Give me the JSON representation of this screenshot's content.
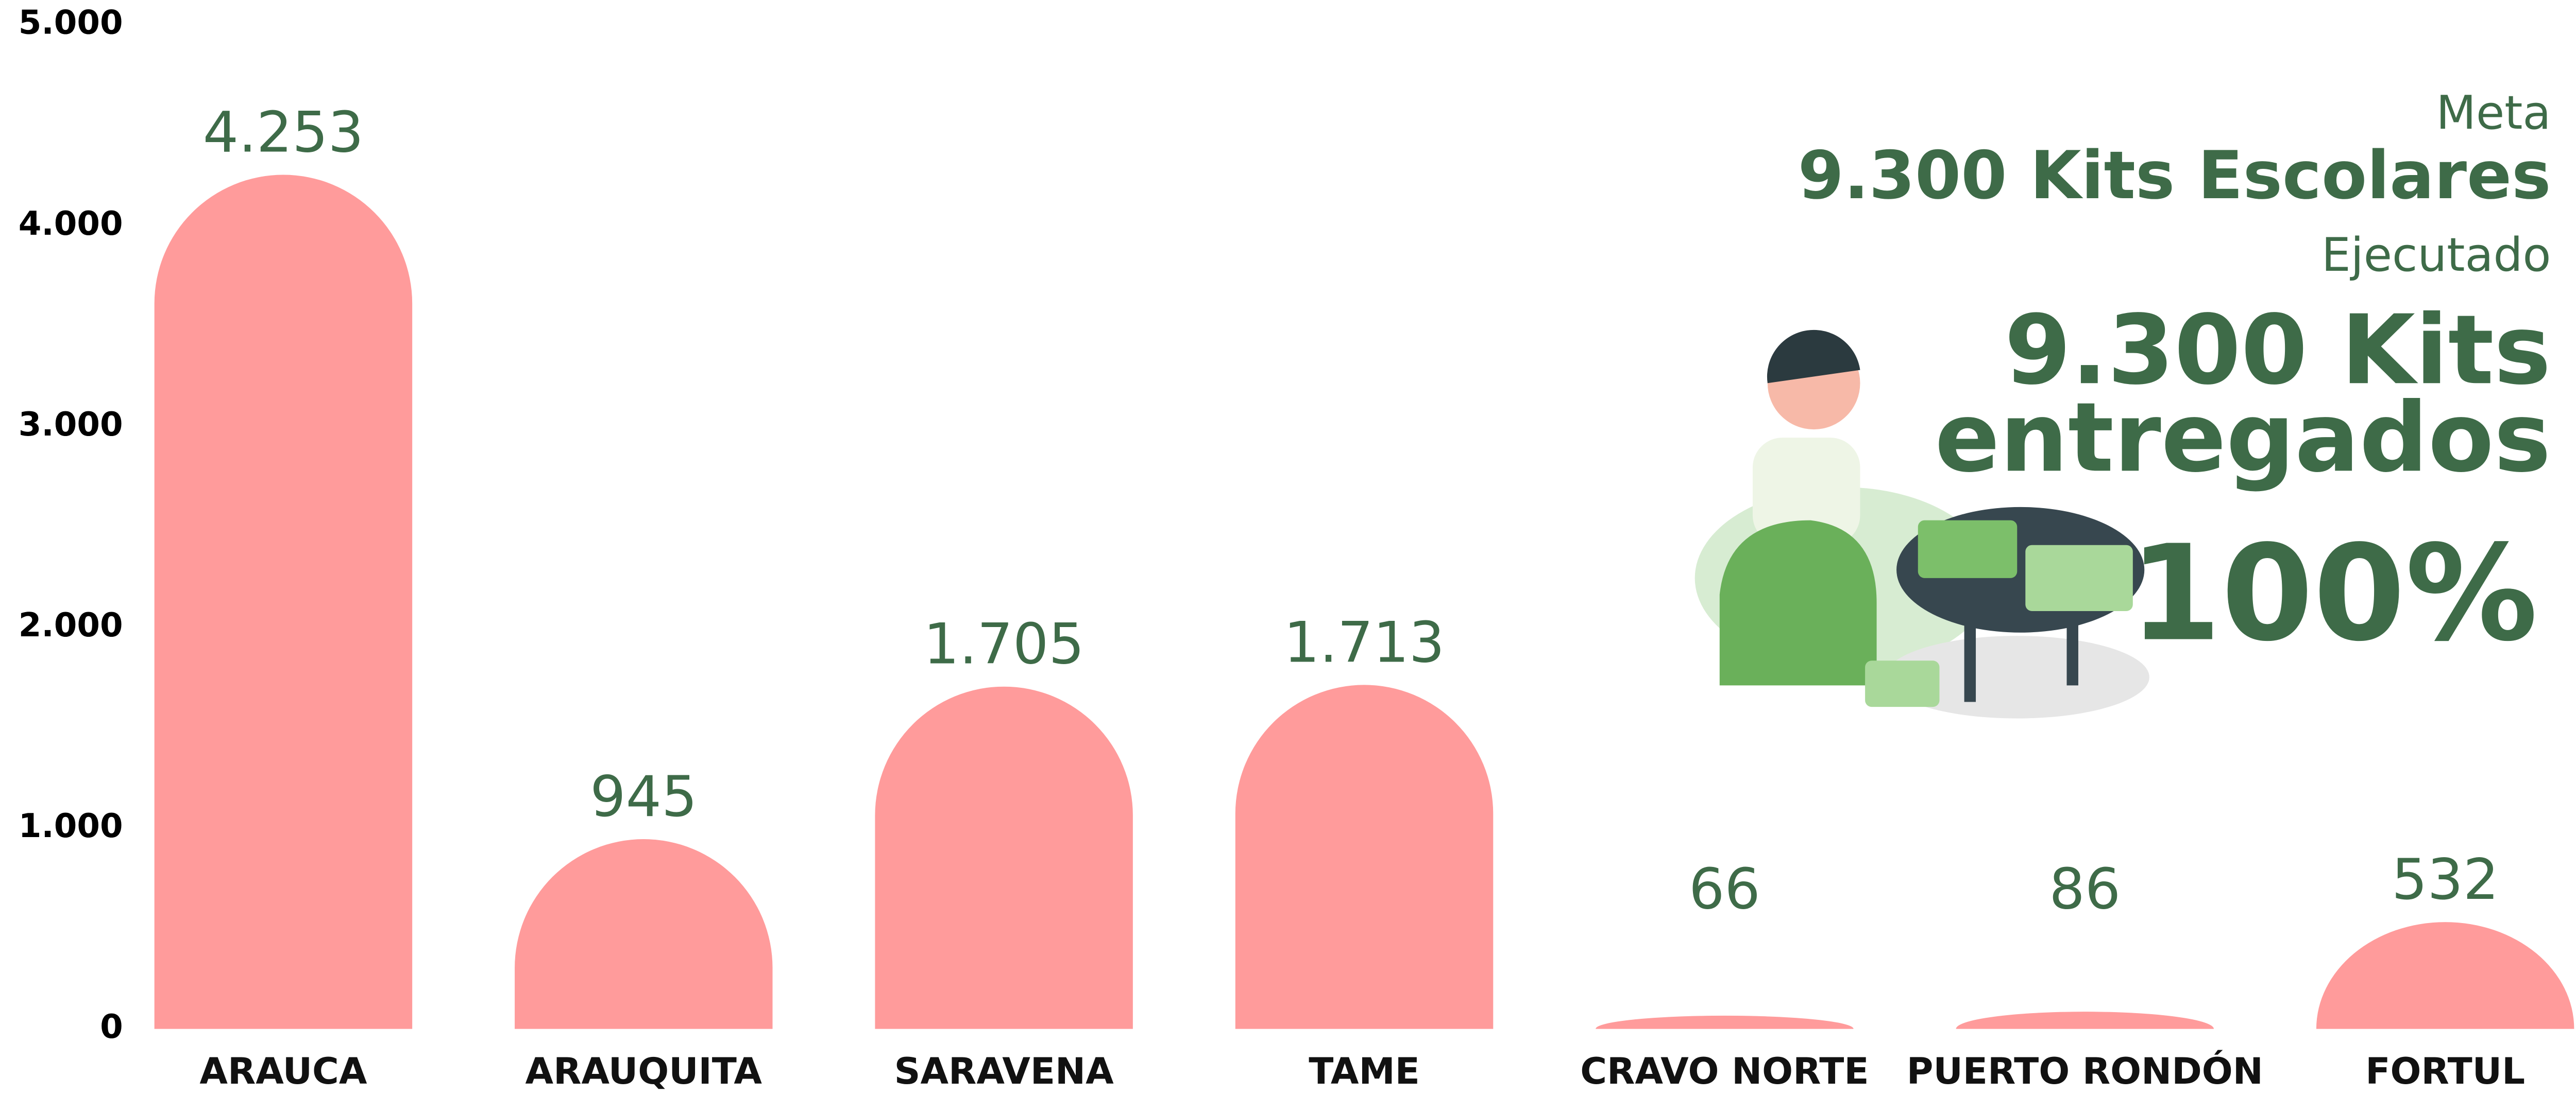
{
  "chart_data": {
    "type": "bar",
    "categories": [
      "ARAUCA",
      "ARAUQUITA",
      "SARAVENA",
      "TAME",
      "CRAVO NORTE",
      "PUERTO RONDÓN",
      "FORTUL"
    ],
    "values": [
      4253,
      945,
      1705,
      1713,
      66,
      86,
      532
    ],
    "value_labels": [
      "4.253",
      "945",
      "1.705",
      "1.713",
      "66",
      "86",
      "532"
    ],
    "color": "#ff9b9b",
    "ylim": [
      0,
      5000
    ],
    "yticks": [
      0,
      {
        "value": 1000,
        "label": "1.000"
      },
      {
        "value": 2000,
        "label": "2.000"
      },
      {
        "value": 3000,
        "label": "3.000"
      },
      {
        "value": 4000,
        "label": "4.000"
      },
      {
        "value": 5000,
        "label": "5.000"
      }
    ],
    "annotations": [
      "Meta",
      "9.300 Kits Escolares",
      "Ejecutado",
      "9.300 Kits",
      "entregados",
      "100%"
    ]
  }
}
